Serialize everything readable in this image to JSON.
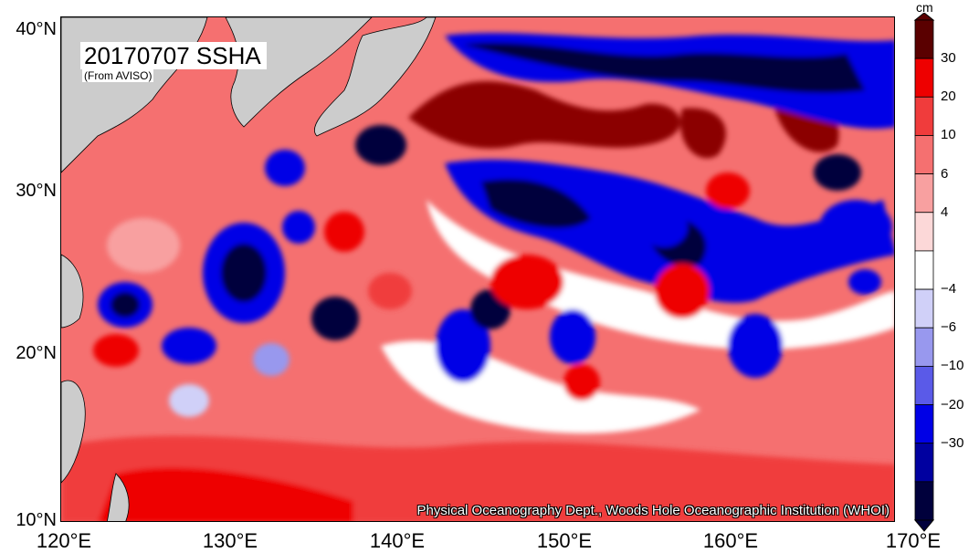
{
  "map": {
    "title": "20170707 SSHA",
    "subtitle": "(From AVISO)",
    "credit": "Physical Oceanography Dept., Woods Hole Oceanographic Institution (WHOI)",
    "extent": {
      "lon": [
        120,
        170
      ],
      "lat": [
        10,
        40
      ]
    },
    "lat_labels": [
      "40°N",
      "30°N",
      "20°N",
      "10°N"
    ],
    "lon_labels": [
      "120°E",
      "130°E",
      "140°E",
      "150°E",
      "160°E",
      "170°E"
    ],
    "land_color": "#cccccc"
  },
  "colorbar": {
    "unit": "cm",
    "tick_labels": [
      "30",
      "20",
      "10",
      "6",
      "4",
      "−4",
      "−6",
      "−10",
      "−20",
      "−30"
    ],
    "colors": [
      "#5a0000",
      "#ee0000",
      "#f03c3c",
      "#f57070",
      "#f8a0a0",
      "#fcd8d8",
      "#ffffff",
      "#d0d0f8",
      "#9898ee",
      "#5a5ae8",
      "#0000e6",
      "#0000a0",
      "#00003c"
    ]
  }
}
